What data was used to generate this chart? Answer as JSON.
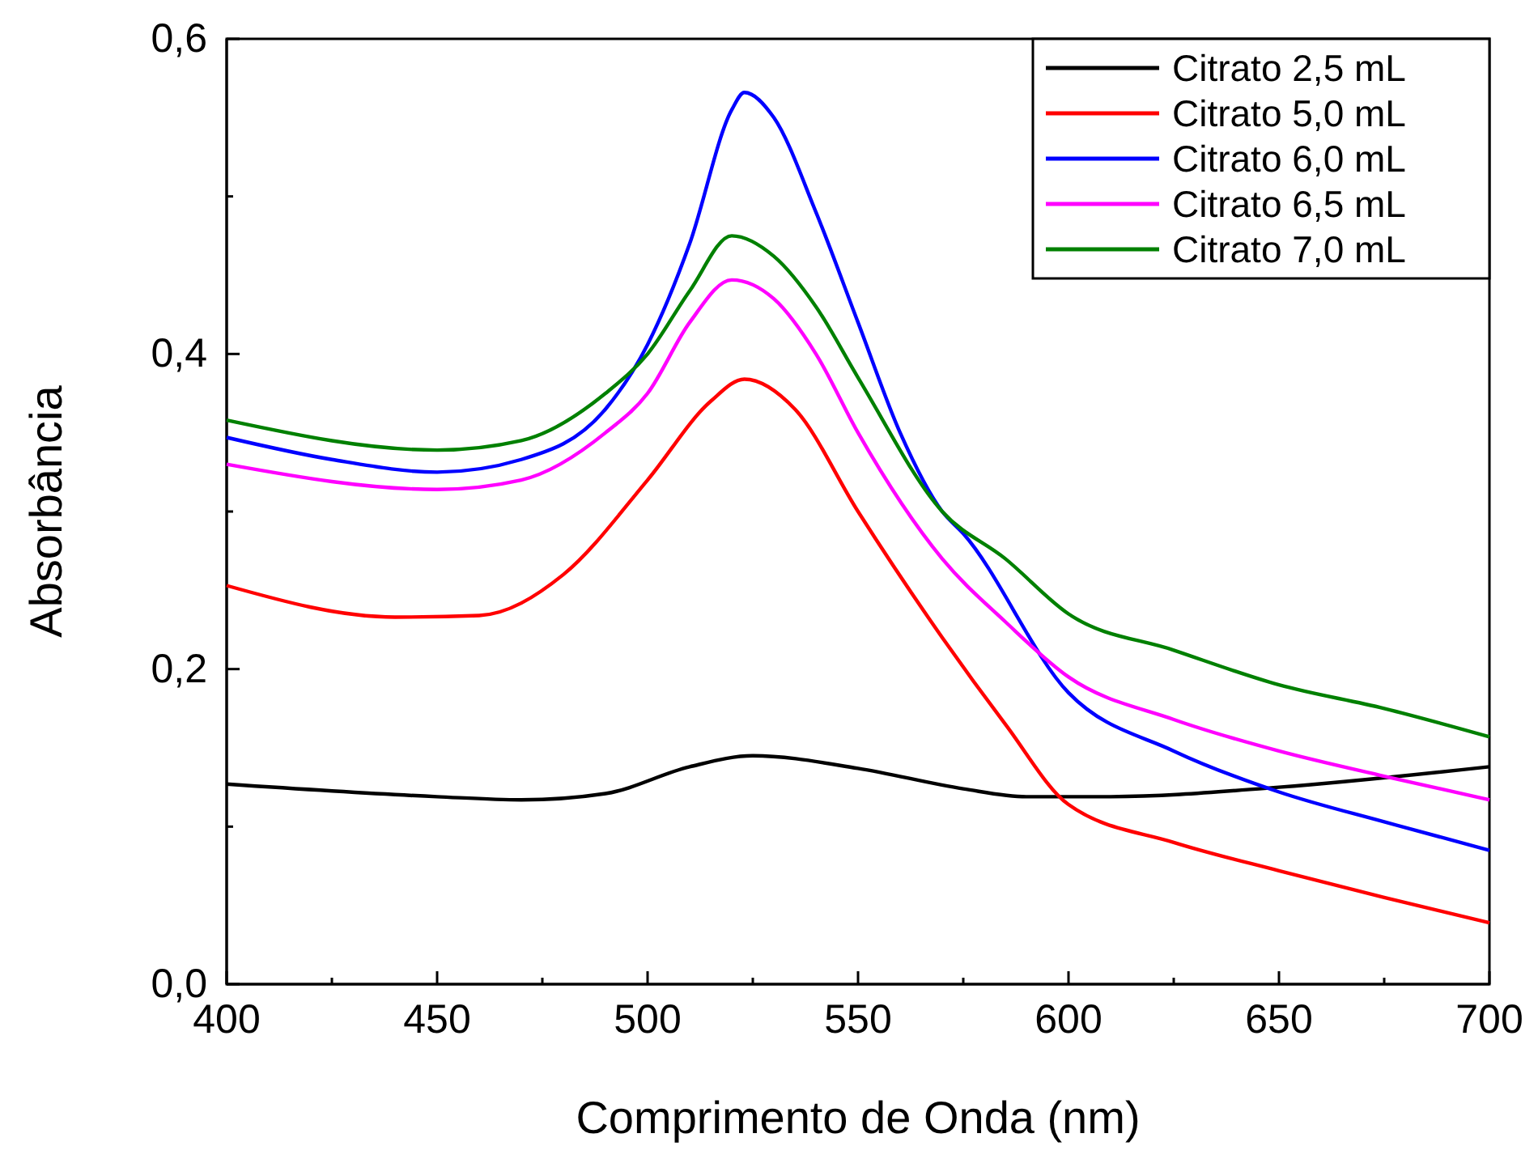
{
  "chart_data": {
    "type": "line",
    "xlabel": "Comprimento de Onda (nm)",
    "ylabel": "Absorbância",
    "xlim": [
      400,
      700
    ],
    "ylim": [
      0,
      0.6
    ],
    "xticks": [
      400,
      450,
      500,
      550,
      600,
      650,
      700
    ],
    "yticks": [
      {
        "value": 0,
        "label": "0,0"
      },
      {
        "value": 0.2,
        "label": "0,2"
      },
      {
        "value": 0.4,
        "label": "0,4"
      },
      {
        "value": 0.6,
        "label": "0,6"
      }
    ],
    "legend": "top right",
    "grid": false,
    "marker": "none",
    "line_style": "solid",
    "series": [
      {
        "name": "Citrato 2,5 mL",
        "color": "#000000",
        "x": [
          400,
          450,
          470,
          490,
          510,
          525,
          550,
          575,
          590,
          610,
          650,
          700
        ],
        "values": [
          0.127,
          0.119,
          0.117,
          0.121,
          0.138,
          0.145,
          0.137,
          0.124,
          0.119,
          0.119,
          0.125,
          0.138
        ]
      },
      {
        "name": "Citrato 5,0 mL",
        "color": "#ff0000",
        "x": [
          400,
          440,
          460,
          480,
          500,
          515,
          523,
          535,
          550,
          570,
          585,
          600,
          625,
          650,
          675,
          700
        ],
        "values": [
          0.253,
          0.233,
          0.234,
          0.26,
          0.32,
          0.37,
          0.384,
          0.365,
          0.3,
          0.22,
          0.165,
          0.114,
          0.09,
          0.072,
          0.055,
          0.039
        ]
      },
      {
        "name": "Citrato 6,0 mL",
        "color": "#0000ff",
        "x": [
          400,
          425,
          450,
          470,
          490,
          500,
          510,
          520,
          523,
          530,
          540,
          550,
          560,
          570,
          575,
          600,
          625,
          650,
          675,
          700
        ],
        "values": [
          0.347,
          0.333,
          0.325,
          0.333,
          0.365,
          0.406,
          0.47,
          0.555,
          0.566,
          0.55,
          0.49,
          0.42,
          0.35,
          0.3,
          0.286,
          0.185,
          0.148,
          0.122,
          0.103,
          0.085
        ]
      },
      {
        "name": "Citrato 6,5 mL",
        "color": "#ff00ff",
        "x": [
          400,
          450,
          470,
          490,
          500,
          510,
          520,
          530,
          540,
          550,
          570,
          585,
          600,
          625,
          650,
          675,
          700
        ],
        "values": [
          0.33,
          0.314,
          0.32,
          0.35,
          0.375,
          0.42,
          0.447,
          0.435,
          0.4,
          0.35,
          0.27,
          0.23,
          0.195,
          0.168,
          0.148,
          0.132,
          0.117
        ]
      },
      {
        "name": "Citrato 7,0 mL",
        "color": "#008000",
        "x": [
          400,
          450,
          470,
          490,
          500,
          510,
          520,
          530,
          540,
          550,
          570,
          585,
          600,
          625,
          650,
          675,
          700
        ],
        "values": [
          0.358,
          0.339,
          0.345,
          0.375,
          0.4,
          0.44,
          0.475,
          0.462,
          0.43,
          0.385,
          0.3,
          0.27,
          0.235,
          0.212,
          0.19,
          0.175,
          0.157
        ]
      }
    ]
  }
}
